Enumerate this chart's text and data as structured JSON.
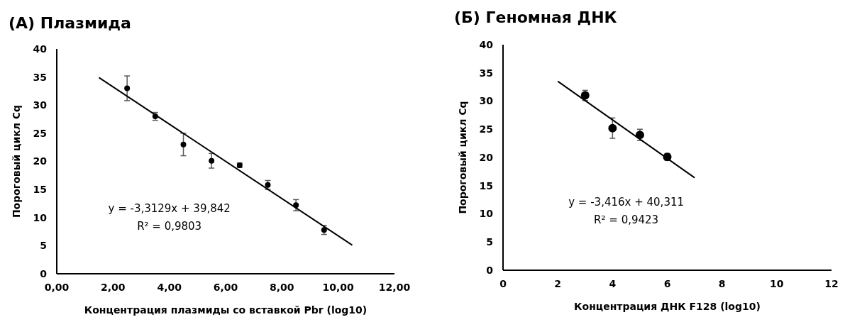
{
  "chart_data": [
    {
      "type": "scatter",
      "title": "(А) Плазмида",
      "xlabel": "Концентрация плазмиды со вставкой Pbr (log10)",
      "ylabel": "Пороговый цикл Cq",
      "xlim": [
        0,
        12
      ],
      "xticks": [
        {
          "value": 0,
          "label": "0,00"
        },
        {
          "value": 2,
          "label": "2,00"
        },
        {
          "value": 4,
          "label": "4,00"
        },
        {
          "value": 6,
          "label": "6,00"
        },
        {
          "value": 8,
          "label": "8,00"
        },
        {
          "value": 10,
          "label": "10,00"
        },
        {
          "value": 12,
          "label": "12,00"
        }
      ],
      "ylim": [
        0,
        40
      ],
      "yticks": [
        0,
        5,
        10,
        15,
        20,
        25,
        30,
        35,
        40
      ],
      "grid": false,
      "annotations": [
        "y = -3,3129x + 39,842",
        "R² = 0,9803"
      ],
      "series": [
        {
          "color": "#000000",
          "marker": "circle",
          "x": [
            2.5,
            3.5,
            4.5,
            5.5,
            6.5,
            7.5,
            8.5,
            9.5
          ],
          "values": [
            33,
            28,
            23,
            20.1,
            19.3,
            15.8,
            12.2,
            7.8
          ],
          "errors": [
            2.2,
            0.7,
            2,
            1.3,
            0.4,
            0.8,
            1,
            0.8
          ]
        },
        {
          "type": "line",
          "color": "#000000",
          "x": [
            1.5,
            10.5
          ],
          "values": [
            34.9,
            5.1
          ]
        }
      ]
    },
    {
      "type": "scatter",
      "title": "(Б) Геномная ДНК",
      "xlabel": "Концентрация ДНК F128 (log10)",
      "ylabel": "Пороговый цикл Cq",
      "xlim": [
        0,
        12
      ],
      "xticks": [
        0,
        2,
        4,
        6,
        8,
        10,
        12
      ],
      "ylim": [
        0,
        40
      ],
      "yticks": [
        0,
        5,
        10,
        15,
        20,
        25,
        30,
        35,
        40
      ],
      "grid": false,
      "annotations": [
        "y = -3,416x + 40,311",
        "R² = 0,9423"
      ],
      "series": [
        {
          "color": "#000000",
          "marker": "circle",
          "x": [
            3,
            4,
            5,
            6
          ],
          "values": [
            31,
            25.2,
            24,
            20.1
          ],
          "errors": [
            0.9,
            1.8,
            1,
            0.6
          ]
        },
        {
          "type": "line",
          "color": "#000000",
          "x": [
            2,
            7
          ],
          "values": [
            33.5,
            16.4
          ]
        }
      ]
    }
  ]
}
